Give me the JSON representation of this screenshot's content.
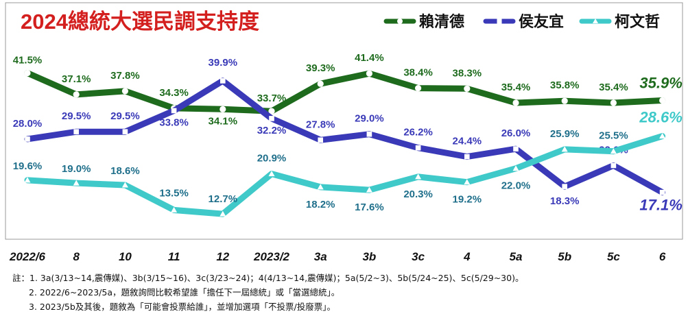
{
  "chart_data": {
    "type": "line",
    "title": "2024總統大選民調支持度",
    "categories": [
      "2022/6",
      "8",
      "10",
      "11",
      "12",
      "2023/2",
      "3a",
      "3b",
      "3c",
      "4",
      "5a",
      "5b",
      "5c",
      "6"
    ],
    "series": [
      {
        "name": "賴清德",
        "color": "#1e6b1e",
        "values": [
          41.5,
          37.1,
          37.8,
          34.3,
          34.1,
          33.7,
          39.3,
          41.4,
          38.4,
          38.3,
          35.4,
          35.8,
          35.4,
          35.9
        ],
        "labels": [
          "41.5%",
          "37.1%",
          "37.8%",
          "34.3%",
          "34.1%",
          "33.7%",
          "39.3%",
          "41.4%",
          "38.4%",
          "38.3%",
          "35.4%",
          "35.8%",
          "35.4%",
          "35.9%"
        ]
      },
      {
        "name": "侯友宜",
        "color": "#3a3ab8",
        "values": [
          28.0,
          29.5,
          29.5,
          33.8,
          39.9,
          32.2,
          27.8,
          29.0,
          26.2,
          24.4,
          26.0,
          18.3,
          22.6,
          17.1
        ],
        "labels": [
          "28.0%",
          "29.5%",
          "29.5%",
          "33.8%",
          "39.9%",
          "32.2%",
          "27.8%",
          "29.0%",
          "26.2%",
          "24.4%",
          "26.0%",
          "18.3%",
          "22.6%",
          "17.1%"
        ]
      },
      {
        "name": "柯文哲",
        "color": "#3fc9c9",
        "values": [
          19.6,
          19.0,
          18.6,
          13.5,
          12.7,
          20.9,
          18.2,
          17.6,
          20.3,
          19.2,
          22.0,
          25.9,
          25.5,
          28.6
        ],
        "labels": [
          "19.6%",
          "19.0%",
          "18.6%",
          "13.5%",
          "12.7%",
          "20.9%",
          "18.2%",
          "17.6%",
          "20.3%",
          "19.2%",
          "22.0%",
          "25.9%",
          "25.5%",
          "28.6%"
        ]
      }
    ],
    "legend_position": "top-right",
    "grid": false
  },
  "notes": [
    "註：1. 3a(3/13~14,震傳媒)、3b(3/15~16)、3c(3/23~24)；4(4/13~14,震傳媒)；5a(5/2~3)、5b(5/24~25)、5c(5/29~30)。",
    "2. 2022/6~2023/5a，題敘詢問比較希望誰「擔任下一屆總統」或「當選總統」。",
    "3. 2023/5b及其後，題敘為「可能會投票給誰」，並增加選項「不投票/投廢票」。"
  ]
}
